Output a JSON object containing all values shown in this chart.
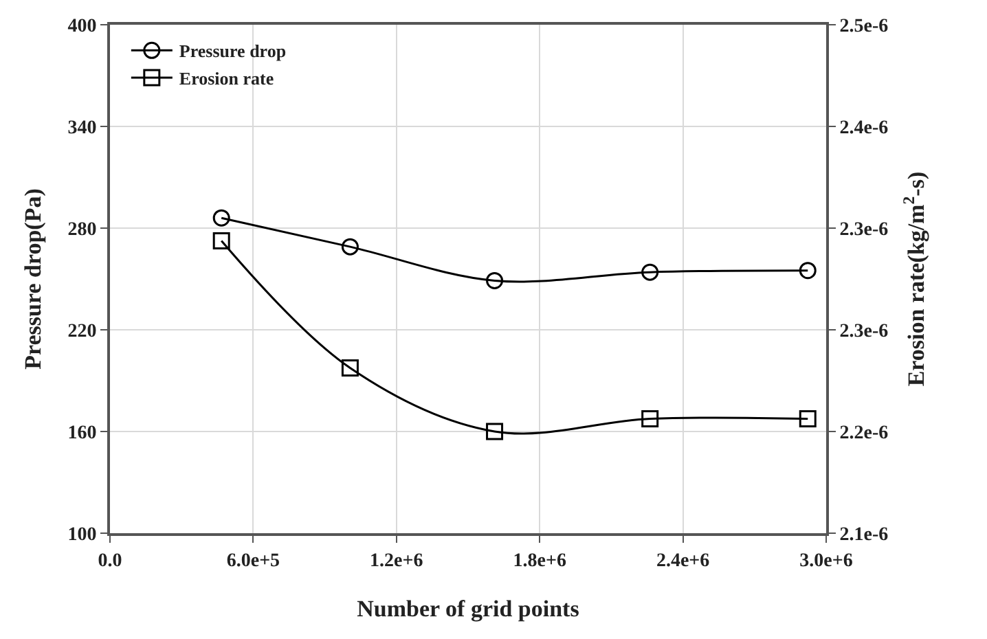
{
  "chart_data": {
    "type": "line",
    "xlabel": "Number of grid points",
    "ylabel": "Pressure drop(Pa)",
    "y2label": "Erosion rate(kg/m$^{2}$-s)",
    "series": [
      {
        "name": "Pressure drop",
        "color": "#000000",
        "marker": "circle",
        "x": [
          467000,
          1006000,
          1611000,
          2262000,
          2923000
        ],
        "values": [
          286,
          269,
          249,
          254,
          255
        ]
      },
      {
        "name": "Erosion rate",
        "color": "#000000",
        "marker": "square",
        "axis": "y2",
        "x": [
          467000,
          1006000,
          1611000,
          2262000,
          2923000
        ],
        "values": [
          2.33e-06,
          2.23e-06,
          2.18e-06,
          2.19e-06,
          2.19e-06
        ]
      }
    ],
    "xlim": [
      0,
      3000000
    ],
    "xticks": [
      {
        "value": 0,
        "label": "0.0"
      },
      {
        "value": 600000,
        "label": "6.0e+5"
      },
      {
        "value": 1200000,
        "label": "1.2e+6"
      },
      {
        "value": 1800000,
        "label": "1.8e+6"
      },
      {
        "value": 2400000,
        "label": "2.4e+6"
      },
      {
        "value": 3000000,
        "label": "3.0e+6"
      }
    ],
    "ylim": [
      100,
      400
    ],
    "yticks": [
      100,
      160,
      220,
      280,
      340,
      400
    ],
    "y2lim": [
      2.1e-06,
      2.5e-06
    ],
    "y2ticks": [
      {
        "value": 2.1e-06,
        "label": "2.1e-6"
      },
      {
        "value": 2.18e-06,
        "label": "2.2e-6"
      },
      {
        "value": 2.26e-06,
        "label": "2.3e-6"
      },
      {
        "value": 2.34e-06,
        "label": "2.3e-6"
      },
      {
        "value": 2.42e-06,
        "label": "2.4e-6"
      },
      {
        "value": 2.5e-06,
        "label": "2.5e-6"
      }
    ],
    "grid": true,
    "legend": "top left",
    "line_style": "solid"
  }
}
